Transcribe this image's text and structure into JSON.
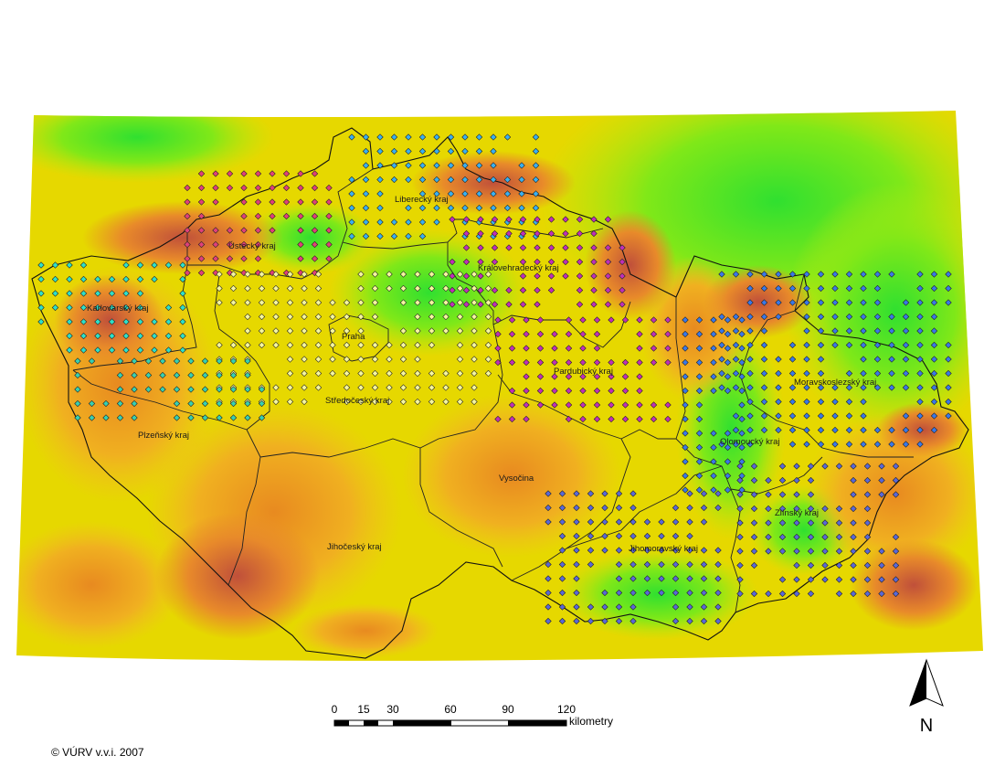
{
  "map": {
    "regions": [
      {
        "id": "karlovarsky",
        "name": "Karlovarský kraj",
        "marker_color": "#2fe0c8"
      },
      {
        "id": "ustecky",
        "name": "Ústecký kraj",
        "marker_color": "#e0407a"
      },
      {
        "id": "liberecky",
        "name": "Liberecký kraj",
        "marker_color": "#3ab0f0"
      },
      {
        "id": "kralovehradecky",
        "name": "Královehradecký kraj",
        "marker_color": "#c030b8"
      },
      {
        "id": "praha",
        "name": "Praha",
        "marker_color": "#f6f6a0"
      },
      {
        "id": "stredocesky",
        "name": "Středočeský kraj",
        "marker_color": "#f6f6a0"
      },
      {
        "id": "pardubicky",
        "name": "Pardubický kraj",
        "marker_color": "#c030b8"
      },
      {
        "id": "plzensky",
        "name": "Plzeňský kraj",
        "marker_color": "#38d0b0"
      },
      {
        "id": "moravskoslezsky",
        "name": "Moravskoslezský kraj",
        "marker_color": "#3a78e8"
      },
      {
        "id": "olomoucky",
        "name": "Olomoucký kraj",
        "marker_color": "#3a78e8"
      },
      {
        "id": "vysocina",
        "name": "Vysočina",
        "marker_color": ""
      },
      {
        "id": "zlinsky",
        "name": "Zlínský kraj",
        "marker_color": "#5a68d8"
      },
      {
        "id": "jihocesky",
        "name": "Jihočeský kraj",
        "marker_color": ""
      },
      {
        "id": "jihomoravsky",
        "name": "Jihomoravský kraj",
        "marker_color": "#5a68d8"
      }
    ],
    "elevation_colors": {
      "low": "#3cf000",
      "mid": "#d8e800",
      "high": "#f0a800",
      "peak": "#c0503a"
    }
  },
  "scale_bar": {
    "ticks": [
      "0",
      "15",
      "30",
      "60",
      "90",
      "120"
    ],
    "unit": "kilometry"
  },
  "north_arrow": {
    "letter": "N"
  },
  "copyright": "© VÚRV v.v.i. 2007"
}
